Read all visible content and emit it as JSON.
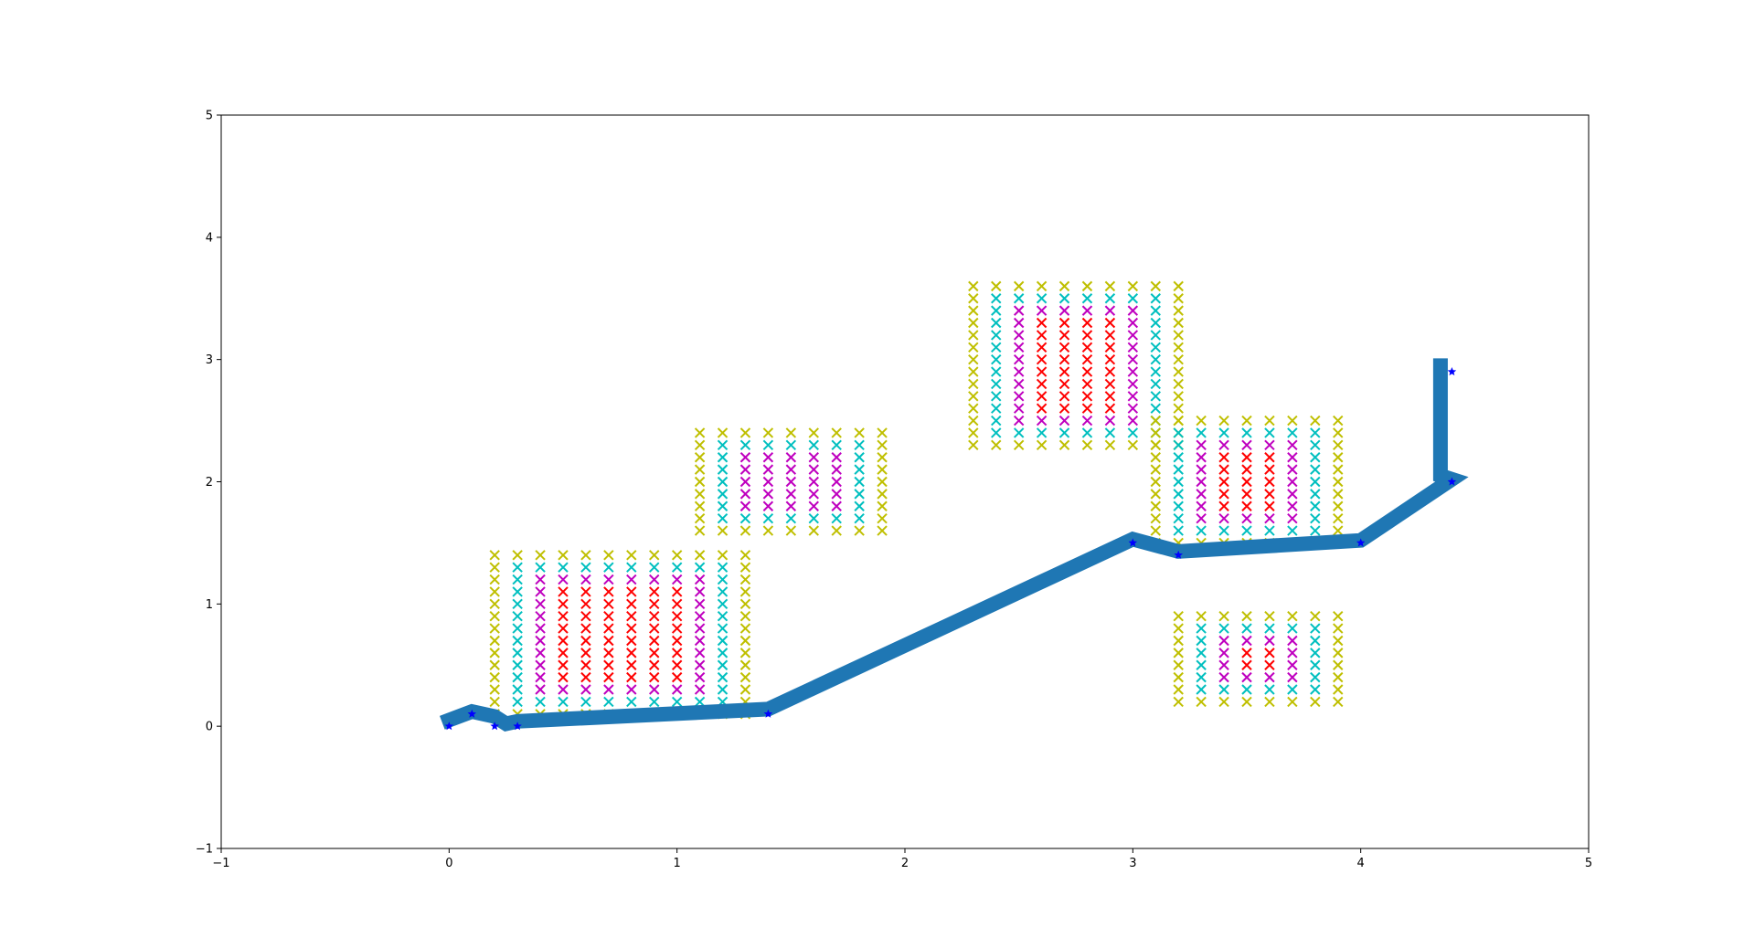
{
  "chart_data": {
    "type": "scatter",
    "xlim": [
      -1,
      5
    ],
    "ylim": [
      -1,
      5
    ],
    "x_ticks": [
      -1,
      0,
      1,
      2,
      3,
      4,
      5
    ],
    "y_ticks": [
      -1,
      0,
      1,
      2,
      3,
      4,
      5
    ],
    "x_tick_labels": [
      "−1",
      "0",
      "1",
      "2",
      "3",
      "4",
      "5"
    ],
    "y_tick_labels": [
      "−1",
      "0",
      "1",
      "2",
      "3",
      "4",
      "5"
    ],
    "grid": false,
    "colors": {
      "outer": "#bfbf00",
      "mid": "#00bfbf",
      "inner": "#bf00bf",
      "core": "#ff0000",
      "path": "#1f77b4",
      "waypoint": "#0000ff"
    },
    "marker_spacing": 0.1,
    "marker_icon": "x-cross",
    "waypoint_icon": "star",
    "fields": [
      {
        "x_min": 0.2,
        "x_max": 1.3,
        "y_min": 0.1,
        "y_max": 1.4,
        "rings": 4
      },
      {
        "x_min": 1.1,
        "x_max": 1.9,
        "y_min": 1.6,
        "y_max": 2.4,
        "rings": 3
      },
      {
        "x_min": 2.3,
        "x_max": 3.2,
        "y_min": 2.3,
        "y_max": 3.6,
        "rings": 4
      },
      {
        "x_min": 3.1,
        "x_max": 3.9,
        "y_min": 1.5,
        "y_max": 2.5,
        "rings": 4
      },
      {
        "x_min": 3.2,
        "x_max": 3.9,
        "y_min": 0.2,
        "y_max": 0.9,
        "rings": 4
      }
    ],
    "path": {
      "x": [
        0.0,
        0.1,
        0.2,
        0.25,
        0.3,
        1.4,
        3.0,
        3.2,
        4.0,
        4.4,
        4.35,
        4.35
      ],
      "y": [
        0.05,
        0.12,
        0.08,
        0.02,
        0.04,
        0.14,
        1.53,
        1.43,
        1.52,
        2.02,
        2.05,
        2.95
      ]
    },
    "waypoints": {
      "x": [
        0.0,
        0.1,
        0.2,
        0.3,
        1.4,
        3.0,
        3.2,
        4.0,
        4.4,
        4.4
      ],
      "y": [
        0.0,
        0.1,
        0.0,
        0.0,
        0.1,
        1.5,
        1.4,
        1.5,
        2.0,
        2.9
      ]
    }
  }
}
